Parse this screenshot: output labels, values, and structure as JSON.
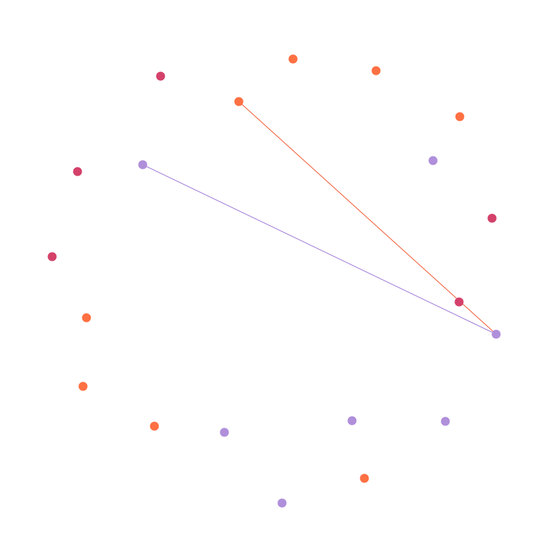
{
  "graph": {
    "colors": {
      "orange": "#FF7043",
      "crimson": "#D4416A",
      "lavender": "#B08FDB",
      "edge_orange": "#F0522A",
      "edge_lavender": "#9C76D6"
    },
    "nodes": [
      {
        "id": "n1",
        "group": "orange"
      },
      {
        "id": "n2",
        "group": "orange"
      },
      {
        "id": "n3",
        "group": "orange"
      },
      {
        "id": "n4",
        "group": "orange"
      },
      {
        "id": "n5",
        "group": "lavender"
      },
      {
        "id": "n6",
        "group": "crimson"
      },
      {
        "id": "n7",
        "group": "crimson"
      },
      {
        "id": "n8",
        "group": "lavender"
      },
      {
        "id": "n9",
        "group": "lavender"
      },
      {
        "id": "n10",
        "group": "lavender"
      },
      {
        "id": "n11",
        "group": "orange"
      },
      {
        "id": "n12",
        "group": "lavender"
      },
      {
        "id": "n13",
        "group": "lavender"
      },
      {
        "id": "n14",
        "group": "orange"
      },
      {
        "id": "n15",
        "group": "orange"
      },
      {
        "id": "n16",
        "group": "orange"
      },
      {
        "id": "n17",
        "group": "crimson"
      },
      {
        "id": "n18",
        "group": "crimson"
      },
      {
        "id": "n19",
        "group": "lavender"
      },
      {
        "id": "n20",
        "group": "crimson"
      }
    ],
    "edges": [
      {
        "from": "n4",
        "to": "n8",
        "color": "edge_orange"
      },
      {
        "from": "n19",
        "to": "n8",
        "color": "edge_lavender"
      }
    ]
  }
}
